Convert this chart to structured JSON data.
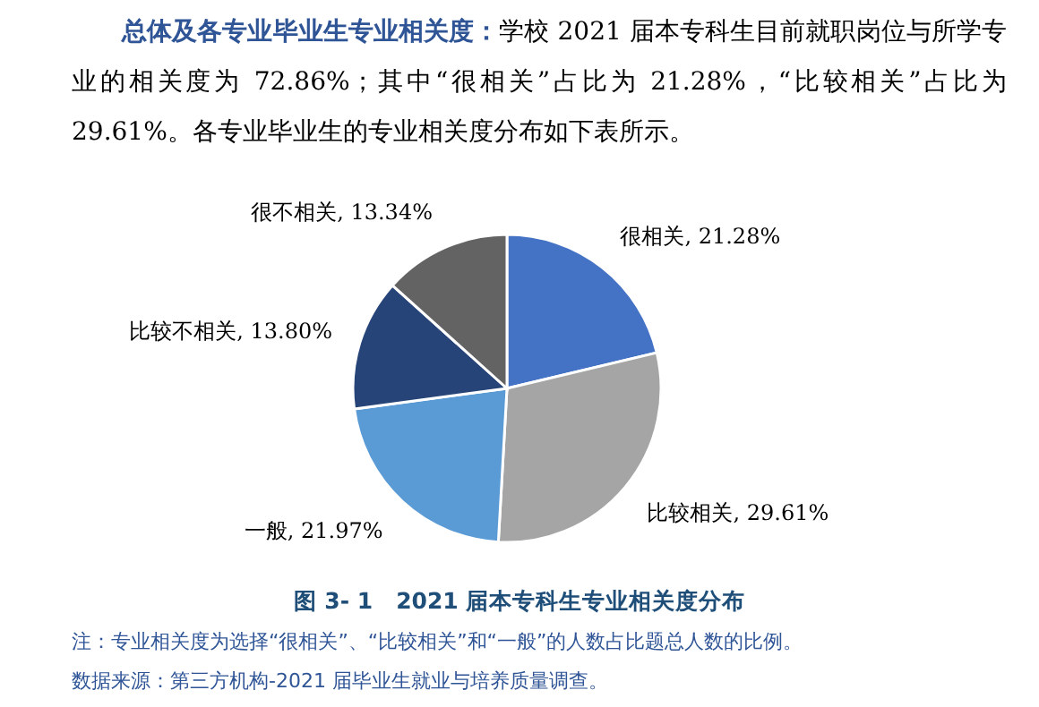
{
  "chart_data": {
    "type": "pie",
    "subtitle": "**总体及各专业毕业生专业相关度：**学校 2021 届本专科生目前就职岗位与所学专业的相关度为 72.86%；其中“很相关”占比为 21.28%，“比较相关”占比为 29.61%。各专业毕业生的专业相关度分布如下表所示。",
    "title": "图 3- 1　2021 届本专科生专业相关度分布",
    "categories": [
      "很相关",
      "比较相关",
      "一般",
      "比较不相关",
      "很不相关"
    ],
    "values": [
      21.28,
      29.61,
      21.97,
      13.8,
      13.34
    ],
    "colors": [
      "#4472c4",
      "#a5a5a5",
      "#5b9bd5",
      "#264478",
      "#636363"
    ],
    "value_labels": [
      ", 21.28%",
      ", 29.61%",
      ", 21.97%",
      ", 13.80%",
      ", 13.34%"
    ],
    "annotations": [
      "注：专业相关度为选择“很相关”、“比较相关”和“一般”的人数占比题总人数的比例。",
      "数据来源：第三方机构-2021 届毕业生就业与培养质量调查。"
    ]
  }
}
